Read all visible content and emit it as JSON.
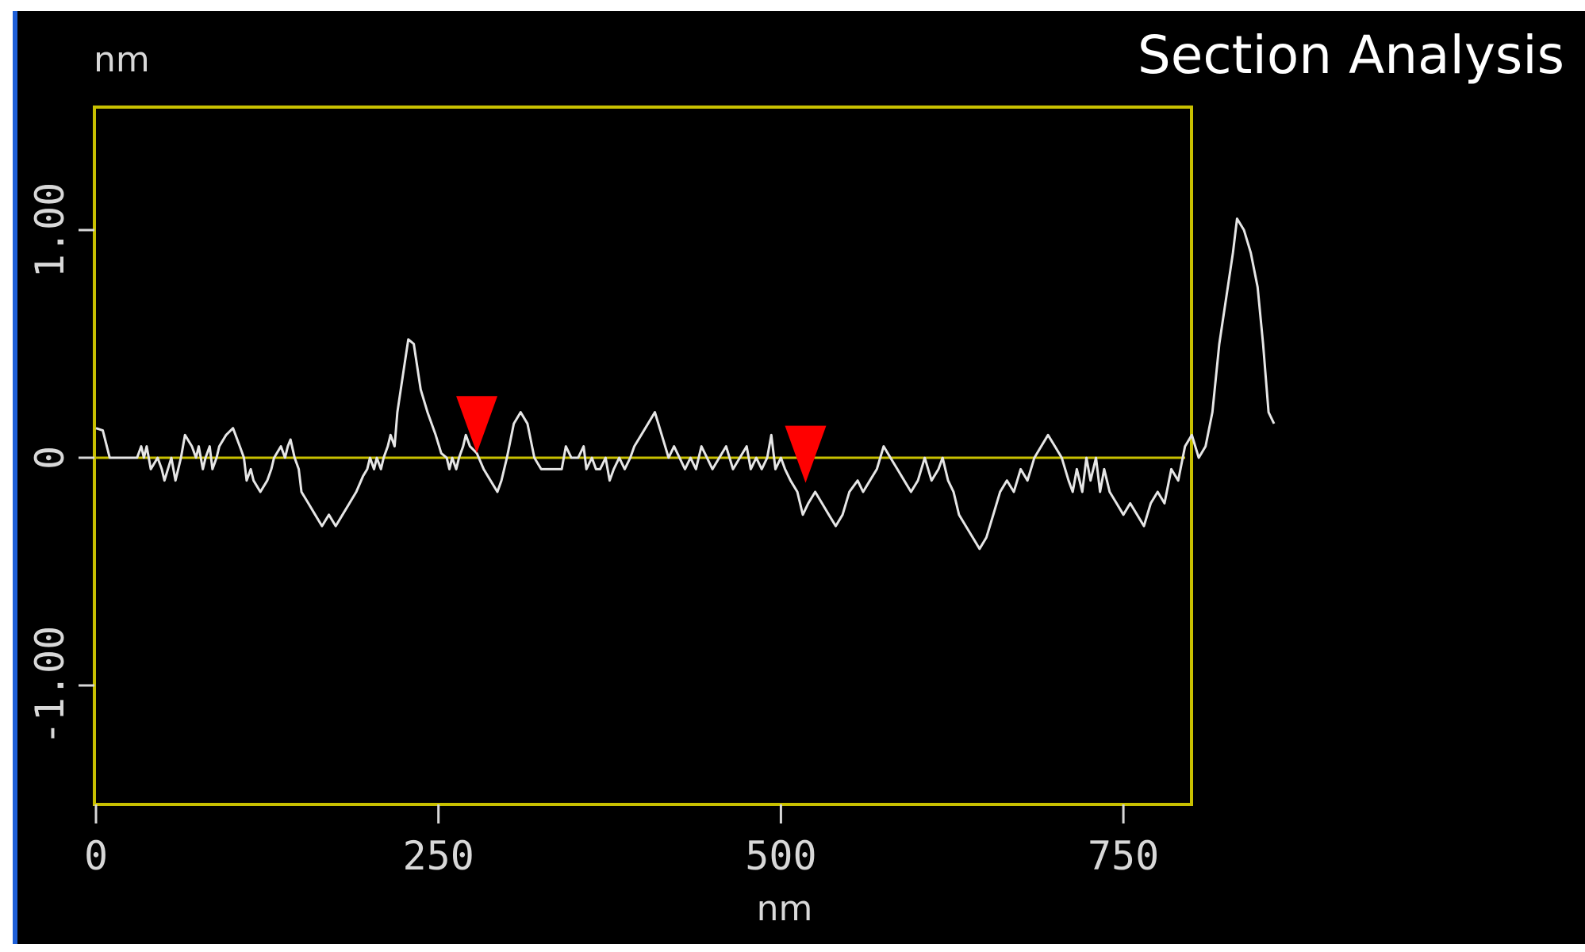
{
  "chart_data": {
    "type": "line",
    "title": "Section Analysis",
    "ylabel": "nm",
    "xlabel": "nm",
    "xlim": [
      0,
      800
    ],
    "ylim": [
      -1.5,
      1.5
    ],
    "xticks": [
      0,
      250,
      500,
      750
    ],
    "xtick_labels": [
      "0",
      "250",
      "500",
      "750"
    ],
    "yticks": [
      1.0,
      0,
      -1.0
    ],
    "ytick_labels": [
      "1.00",
      "0",
      "-1.00"
    ],
    "grid": false,
    "colors": {
      "background": "#000000",
      "frame": "#c8c000",
      "line": "#e6e6e6",
      "marker": "#ff0000"
    },
    "markers": [
      {
        "x": 278,
        "y": 0.02
      },
      {
        "x": 518,
        "y": -0.11
      }
    ],
    "series": [
      {
        "points": [
          [
            0,
            0.13
          ],
          [
            5,
            0.12
          ],
          [
            10,
            0.0
          ],
          [
            15,
            0.0
          ],
          [
            20,
            0.0
          ],
          [
            25,
            0.0
          ],
          [
            30,
            0.0
          ],
          [
            33,
            0.05
          ],
          [
            35,
            0.0
          ],
          [
            37,
            0.05
          ],
          [
            40,
            -0.05
          ],
          [
            45,
            0.0
          ],
          [
            48,
            -0.05
          ],
          [
            50,
            -0.1
          ],
          [
            55,
            0.0
          ],
          [
            58,
            -0.1
          ],
          [
            62,
            0.0
          ],
          [
            65,
            0.1
          ],
          [
            70,
            0.05
          ],
          [
            73,
            0.0
          ],
          [
            75,
            0.05
          ],
          [
            78,
            -0.05
          ],
          [
            80,
            0.0
          ],
          [
            83,
            0.05
          ],
          [
            85,
            -0.05
          ],
          [
            88,
            0.0
          ],
          [
            90,
            0.05
          ],
          [
            95,
            0.1
          ],
          [
            100,
            0.13
          ],
          [
            105,
            0.05
          ],
          [
            108,
            0.0
          ],
          [
            110,
            -0.1
          ],
          [
            113,
            -0.05
          ],
          [
            115,
            -0.1
          ],
          [
            120,
            -0.15
          ],
          [
            125,
            -0.1
          ],
          [
            128,
            -0.05
          ],
          [
            130,
            0.0
          ],
          [
            135,
            0.05
          ],
          [
            138,
            0.0
          ],
          [
            140,
            0.05
          ],
          [
            142,
            0.08
          ],
          [
            145,
            0.0
          ],
          [
            148,
            -0.05
          ],
          [
            150,
            -0.15
          ],
          [
            155,
            -0.2
          ],
          [
            160,
            -0.25
          ],
          [
            165,
            -0.3
          ],
          [
            170,
            -0.25
          ],
          [
            175,
            -0.3
          ],
          [
            180,
            -0.25
          ],
          [
            185,
            -0.2
          ],
          [
            190,
            -0.15
          ],
          [
            195,
            -0.08
          ],
          [
            198,
            -0.05
          ],
          [
            200,
            0.0
          ],
          [
            203,
            -0.05
          ],
          [
            205,
            0.0
          ],
          [
            208,
            -0.05
          ],
          [
            210,
            0.0
          ],
          [
            213,
            0.05
          ],
          [
            215,
            0.1
          ],
          [
            218,
            0.05
          ],
          [
            220,
            0.2
          ],
          [
            225,
            0.4
          ],
          [
            228,
            0.52
          ],
          [
            232,
            0.5
          ],
          [
            237,
            0.3
          ],
          [
            242,
            0.2
          ],
          [
            248,
            0.1
          ],
          [
            252,
            0.02
          ],
          [
            256,
            0.0
          ],
          [
            258,
            -0.05
          ],
          [
            260,
            0.0
          ],
          [
            263,
            -0.05
          ],
          [
            265,
            0.0
          ],
          [
            268,
            0.05
          ],
          [
            270,
            0.1
          ],
          [
            273,
            0.05
          ],
          [
            278,
            0.02
          ],
          [
            283,
            -0.05
          ],
          [
            288,
            -0.1
          ],
          [
            293,
            -0.15
          ],
          [
            296,
            -0.1
          ],
          [
            300,
            0.0
          ],
          [
            305,
            0.15
          ],
          [
            310,
            0.2
          ],
          [
            315,
            0.15
          ],
          [
            320,
            0.0
          ],
          [
            325,
            -0.05
          ],
          [
            330,
            -0.05
          ],
          [
            335,
            -0.05
          ],
          [
            340,
            -0.05
          ],
          [
            343,
            0.05
          ],
          [
            347,
            0.0
          ],
          [
            352,
            0.0
          ],
          [
            356,
            0.05
          ],
          [
            358,
            -0.05
          ],
          [
            362,
            0.0
          ],
          [
            365,
            -0.05
          ],
          [
            368,
            -0.05
          ],
          [
            372,
            0.0
          ],
          [
            375,
            -0.1
          ],
          [
            378,
            -0.05
          ],
          [
            382,
            0.0
          ],
          [
            386,
            -0.05
          ],
          [
            390,
            0.0
          ],
          [
            393,
            0.05
          ],
          [
            398,
            0.1
          ],
          [
            403,
            0.15
          ],
          [
            408,
            0.2
          ],
          [
            413,
            0.1
          ],
          [
            418,
            0.0
          ],
          [
            422,
            0.05
          ],
          [
            426,
            0.0
          ],
          [
            430,
            -0.05
          ],
          [
            434,
            0.0
          ],
          [
            438,
            -0.05
          ],
          [
            442,
            0.05
          ],
          [
            446,
            0.0
          ],
          [
            450,
            -0.05
          ],
          [
            455,
            0.0
          ],
          [
            460,
            0.05
          ],
          [
            465,
            -0.05
          ],
          [
            470,
            0.0
          ],
          [
            475,
            0.05
          ],
          [
            478,
            -0.05
          ],
          [
            482,
            0.0
          ],
          [
            486,
            -0.05
          ],
          [
            490,
            0.0
          ],
          [
            493,
            0.1
          ],
          [
            496,
            -0.05
          ],
          [
            500,
            0.0
          ],
          [
            503,
            -0.05
          ],
          [
            507,
            -0.1
          ],
          [
            512,
            -0.15
          ],
          [
            516,
            -0.25
          ],
          [
            520,
            -0.2
          ],
          [
            525,
            -0.15
          ],
          [
            530,
            -0.2
          ],
          [
            535,
            -0.25
          ],
          [
            540,
            -0.3
          ],
          [
            545,
            -0.25
          ],
          [
            550,
            -0.15
          ],
          [
            556,
            -0.1
          ],
          [
            560,
            -0.15
          ],
          [
            565,
            -0.1
          ],
          [
            570,
            -0.05
          ],
          [
            575,
            0.05
          ],
          [
            580,
            0.0
          ],
          [
            585,
            -0.05
          ],
          [
            590,
            -0.1
          ],
          [
            595,
            -0.15
          ],
          [
            600,
            -0.1
          ],
          [
            605,
            0.0
          ],
          [
            610,
            -0.1
          ],
          [
            615,
            -0.05
          ],
          [
            618,
            0.0
          ],
          [
            622,
            -0.1
          ],
          [
            626,
            -0.15
          ],
          [
            630,
            -0.25
          ],
          [
            635,
            -0.3
          ],
          [
            640,
            -0.35
          ],
          [
            645,
            -0.4
          ],
          [
            650,
            -0.35
          ],
          [
            655,
            -0.25
          ],
          [
            660,
            -0.15
          ],
          [
            665,
            -0.1
          ],
          [
            670,
            -0.15
          ],
          [
            675,
            -0.05
          ],
          [
            680,
            -0.1
          ],
          [
            685,
            0.0
          ],
          [
            690,
            0.05
          ],
          [
            695,
            0.1
          ],
          [
            700,
            0.05
          ],
          [
            705,
            0.0
          ],
          [
            710,
            -0.1
          ],
          [
            713,
            -0.15
          ],
          [
            716,
            -0.05
          ],
          [
            720,
            -0.15
          ],
          [
            723,
            0.0
          ],
          [
            726,
            -0.1
          ],
          [
            730,
            0.0
          ],
          [
            733,
            -0.15
          ],
          [
            736,
            -0.05
          ],
          [
            740,
            -0.15
          ],
          [
            745,
            -0.2
          ],
          [
            750,
            -0.25
          ],
          [
            755,
            -0.2
          ],
          [
            760,
            -0.25
          ],
          [
            765,
            -0.3
          ],
          [
            770,
            -0.2
          ],
          [
            775,
            -0.15
          ],
          [
            780,
            -0.2
          ],
          [
            785,
            -0.05
          ],
          [
            790,
            -0.1
          ],
          [
            795,
            0.05
          ],
          [
            800,
            0.1
          ],
          [
            805,
            0.0
          ],
          [
            810,
            0.05
          ],
          [
            815,
            0.2
          ],
          [
            820,
            0.5
          ],
          [
            825,
            0.7
          ],
          [
            830,
            0.9
          ],
          [
            833,
            1.05
          ],
          [
            838,
            1.0
          ],
          [
            843,
            0.9
          ],
          [
            848,
            0.75
          ],
          [
            852,
            0.5
          ],
          [
            856,
            0.2
          ],
          [
            860,
            0.15
          ]
        ]
      }
    ]
  }
}
